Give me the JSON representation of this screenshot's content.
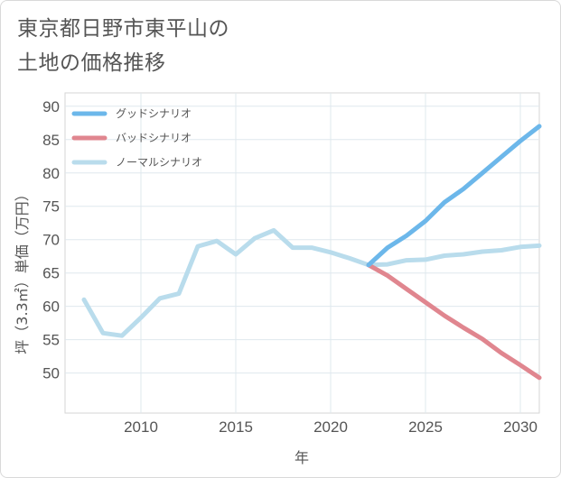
{
  "page": {
    "title_line1": "東京都日野市東平山の",
    "title_line2": "土地の価格推移"
  },
  "chart_data": {
    "type": "line",
    "xlabel": "年",
    "ylabel": "坪（3.3㎡）単価（万円）",
    "xlim": [
      2006,
      2031
    ],
    "ylim": [
      44,
      92
    ],
    "x_ticks": [
      2010,
      2015,
      2020,
      2025,
      2030
    ],
    "y_ticks": [
      50,
      55,
      60,
      65,
      70,
      75,
      80,
      85,
      90
    ],
    "grid": true,
    "legend_position": "top-left",
    "series": [
      {
        "name": "グッドシナリオ",
        "color": "#6cb7ea",
        "x": [
          2022,
          2023,
          2024,
          2025,
          2026,
          2027,
          2028,
          2029,
          2030,
          2031
        ],
        "values": [
          66.2,
          68.8,
          70.6,
          72.8,
          75.6,
          77.6,
          80.0,
          82.4,
          84.8,
          87.0
        ]
      },
      {
        "name": "バッドシナリオ",
        "color": "#e0868f",
        "x": [
          2022,
          2023,
          2024,
          2025,
          2026,
          2027,
          2028,
          2029,
          2030,
          2031
        ],
        "values": [
          66.2,
          64.6,
          62.6,
          60.6,
          58.6,
          56.8,
          55.1,
          53.0,
          51.2,
          49.3
        ]
      },
      {
        "name": "ノーマルシナリオ",
        "color": "#b9dcec",
        "x": [
          2007,
          2008,
          2009,
          2010,
          2011,
          2012,
          2013,
          2014,
          2015,
          2016,
          2017,
          2018,
          2019,
          2020,
          2021,
          2022,
          2023,
          2024,
          2025,
          2026,
          2027,
          2028,
          2029,
          2030,
          2031
        ],
        "values": [
          61.0,
          56.0,
          55.6,
          58.3,
          61.2,
          61.9,
          69.0,
          69.8,
          67.8,
          70.2,
          71.4,
          68.8,
          68.8,
          68.1,
          67.2,
          66.2,
          66.3,
          66.9,
          67.0,
          67.6,
          67.8,
          68.2,
          68.4,
          68.9,
          69.1
        ]
      }
    ]
  }
}
